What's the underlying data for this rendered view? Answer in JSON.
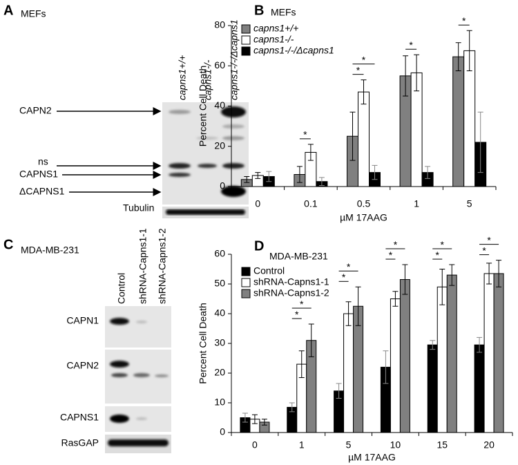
{
  "panel_labels": [
    "A",
    "B",
    "C",
    "D"
  ],
  "blots": [
    {
      "title": "MEFs",
      "lanes": [
        "capns1+/+",
        "capns1-/-",
        "capns1-/-/Δcapns1"
      ],
      "bands": [
        "CAPN2",
        "ns",
        "CAPNS1",
        "ΔCAPNS1",
        "Tubulin"
      ]
    },
    {
      "title": "MDA-MB-231",
      "lanes": [
        "Control",
        "shRNA-Capns1-1",
        "shRNA-Capns1-2"
      ],
      "bands": [
        "CAPN1",
        "CAPN2",
        "CAPNS1",
        "RasGAP"
      ]
    }
  ],
  "chart_data": [
    {
      "type": "bar",
      "title": "MEFs",
      "x_label": "µM 17AAG",
      "y_label": "Percent Cell Death",
      "categories": [
        "0",
        "0.1",
        "0.5",
        "1",
        "5"
      ],
      "series": [
        {
          "name": "capns1+/+",
          "color": "#808080",
          "values": [
            3.5,
            6,
            25,
            55,
            64.5
          ],
          "errors": [
            1.5,
            4,
            12,
            10,
            7
          ]
        },
        {
          "name": "capns1-/-",
          "color": "#ffffff",
          "values": [
            5.5,
            17,
            47,
            56.5,
            67.5
          ],
          "errors": [
            1.5,
            4,
            6,
            9,
            10
          ]
        },
        {
          "name": "capns1-/-/Δcapns1",
          "color": "#000000",
          "values": [
            5,
            2.5,
            7,
            7,
            22
          ],
          "errors": [
            2.5,
            2,
            3.5,
            3,
            15
          ]
        }
      ],
      "ylim": [
        0,
        80
      ],
      "yticks": [
        0,
        20,
        40,
        60,
        80
      ],
      "legend": "top-left",
      "annotations": [
        {
          "text": "*",
          "category": 1,
          "series": [
            0,
            1
          ]
        },
        {
          "text": "*",
          "category": 2,
          "series": [
            0,
            1
          ]
        },
        {
          "text": "*",
          "category": 2,
          "series": [
            0,
            2
          ]
        },
        {
          "text": "*",
          "category": 3,
          "series": [
            0,
            1
          ]
        },
        {
          "text": "*",
          "category": 4,
          "series": [
            0,
            1
          ]
        }
      ]
    },
    {
      "type": "bar",
      "title": "MDA-MB-231",
      "x_label": "µM 17AAG",
      "y_label": "Percent Cell Death",
      "categories": [
        "0",
        "1",
        "5",
        "10",
        "15",
        "20"
      ],
      "series": [
        {
          "name": "Control",
          "color": "#000000",
          "values": [
            5,
            8.5,
            14,
            22,
            29.5,
            29.5
          ],
          "errors": [
            1.5,
            1.5,
            2.5,
            5.5,
            1.5,
            2.5
          ]
        },
        {
          "name": "shRNA-Capns1-1",
          "color": "#ffffff",
          "values": [
            4.5,
            23,
            40,
            45,
            49,
            53.5
          ],
          "errors": [
            1.5,
            4.5,
            4,
            2.5,
            6,
            3.5
          ]
        },
        {
          "name": "shRNA-Capns1-2",
          "color": "#808080",
          "values": [
            3.5,
            31,
            42.5,
            51.5,
            53,
            53.5
          ],
          "errors": [
            1,
            5.5,
            6.5,
            5,
            3.5,
            4.5
          ]
        }
      ],
      "ylim": [
        0,
        60
      ],
      "yticks": [
        0,
        10,
        20,
        30,
        40,
        50,
        60
      ],
      "legend": "top-left",
      "annotations": [
        {
          "text": "*",
          "category": 1,
          "series": [
            0,
            1
          ]
        },
        {
          "text": "*",
          "category": 1,
          "series": [
            0,
            2
          ]
        },
        {
          "text": "*",
          "category": 2,
          "series": [
            0,
            1
          ]
        },
        {
          "text": "*",
          "category": 2,
          "series": [
            0,
            2
          ]
        },
        {
          "text": "*",
          "category": 3,
          "series": [
            0,
            1
          ]
        },
        {
          "text": "*",
          "category": 3,
          "series": [
            0,
            2
          ]
        },
        {
          "text": "*",
          "category": 4,
          "series": [
            0,
            1
          ]
        },
        {
          "text": "*",
          "category": 4,
          "series": [
            0,
            2
          ]
        },
        {
          "text": "*",
          "category": 5,
          "series": [
            0,
            1
          ]
        },
        {
          "text": "*",
          "category": 5,
          "series": [
            0,
            2
          ]
        }
      ]
    }
  ]
}
